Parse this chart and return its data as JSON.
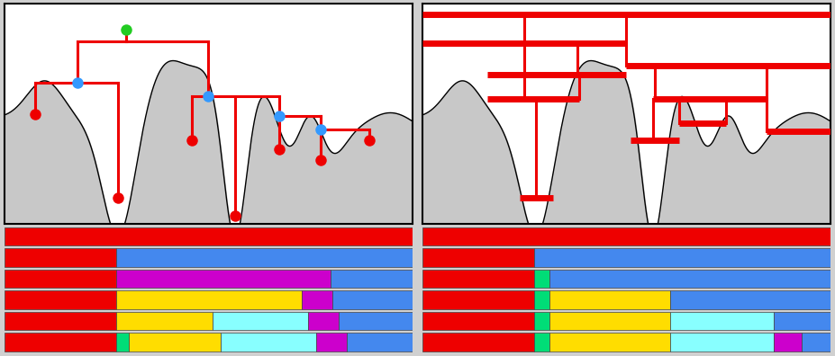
{
  "fig_width": 9.28,
  "fig_height": 3.96,
  "bg_color": "#d0d0d0",
  "red": "#ee0000",
  "blue_dot": "#3399ff",
  "green_dot": "#22cc22",
  "cyan": "#88ffff",
  "yellow": "#ffdd00",
  "purple": "#cc00cc",
  "light_green": "#00dd77",
  "bar_blue": "#4488ee",
  "left_bars": [
    [
      "#ee0000"
    ],
    [
      "#ee0000",
      "#4488ee"
    ],
    [
      "#ee0000",
      "#cc00cc",
      "#4488ee"
    ],
    [
      "#ee0000",
      "#ffdd00",
      "#cc00cc",
      "#4488ee"
    ],
    [
      "#ee0000",
      "#ffdd00",
      "#88ffff",
      "#cc00cc",
      "#4488ee"
    ],
    [
      "#ee0000",
      "#00dd77",
      "#ffdd00",
      "#88ffff",
      "#cc00cc",
      "#4488ee"
    ]
  ],
  "left_bar_fracs": [
    [
      1.0
    ],
    [
      0.275,
      0.725
    ],
    [
      0.275,
      0.525,
      0.2
    ],
    [
      0.275,
      0.455,
      0.075,
      0.195
    ],
    [
      0.275,
      0.235,
      0.235,
      0.075,
      0.18
    ],
    [
      0.275,
      0.03,
      0.225,
      0.235,
      0.075,
      0.16
    ]
  ],
  "right_bars": [
    [
      "#ee0000"
    ],
    [
      "#ee0000",
      "#4488ee"
    ],
    [
      "#ee0000",
      "#00dd77",
      "#4488ee"
    ],
    [
      "#ee0000",
      "#00dd77",
      "#ffdd00",
      "#4488ee"
    ],
    [
      "#ee0000",
      "#00dd77",
      "#ffdd00",
      "#88ffff",
      "#4488ee"
    ],
    [
      "#ee0000",
      "#00dd77",
      "#ffdd00",
      "#88ffff",
      "#cc00cc",
      "#4488ee"
    ]
  ],
  "right_bar_fracs": [
    [
      1.0
    ],
    [
      0.275,
      0.725
    ],
    [
      0.275,
      0.038,
      0.687
    ],
    [
      0.275,
      0.038,
      0.295,
      0.392
    ],
    [
      0.275,
      0.038,
      0.295,
      0.255,
      0.137
    ],
    [
      0.275,
      0.038,
      0.295,
      0.255,
      0.068,
      0.069
    ]
  ]
}
